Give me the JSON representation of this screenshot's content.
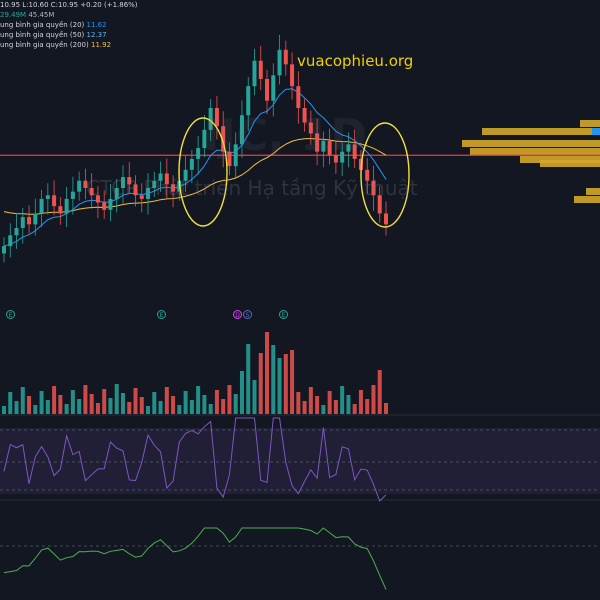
{
  "legend": {
    "ohlc_text": "10.95 L:10.60 C:10.95 +0.20 (+1.86%)",
    "volume_text": "29.49M",
    "volume_extra": "45.45M",
    "ma_rows": [
      {
        "label": "ung bình gia quyền (20)",
        "value": "11.62",
        "color": "#2196f3"
      },
      {
        "label": "ung bình gia quyền (50)",
        "value": "12.37",
        "color": "#5bb8e8"
      },
      {
        "label": "ung bình gia quyền (200)",
        "value": "11.92",
        "color": "#f0c040"
      }
    ]
  },
  "watermark": {
    "site": "vuacophieu.org",
    "company": "CTCP Phát triển Hạ tầng Kỹ thuật",
    "ticker": "IJC, 1D"
  },
  "events": [
    {
      "label": "E",
      "color": "#26a69a"
    },
    {
      "label": "E",
      "color": "#26a69a"
    },
    {
      "label": "D",
      "color": "#e040fb"
    },
    {
      "label": "S",
      "color": "#5c6bc0"
    },
    {
      "label": "E",
      "color": "#26a69a"
    }
  ],
  "colors": {
    "background": "#131722",
    "up": "#26a69a",
    "down": "#ef5350",
    "ema20": "#2196f3",
    "ema200": "#f0c040",
    "support_line": "#f23645",
    "volume_profile": "#d4a92a",
    "rsi": "#7e57c2",
    "indicator2": "#4caf50",
    "annotation": "#f0e040"
  },
  "chart_data": {
    "type": "candlestick",
    "price_panel": {
      "horizontal_line": 13.1,
      "close_series": [
        10.6,
        10.9,
        11.1,
        11.4,
        11.2,
        11.5,
        11.9,
        12.0,
        11.7,
        11.5,
        11.9,
        12.1,
        12.4,
        12.2,
        12.0,
        11.8,
        11.6,
        11.9,
        12.2,
        12.5,
        12.3,
        12.0,
        11.9,
        12.2,
        12.4,
        12.6,
        12.3,
        12.1,
        12.4,
        12.7,
        13.0,
        13.3,
        13.8,
        14.4,
        13.9,
        13.2,
        12.8,
        13.4,
        14.2,
        15.0,
        15.7,
        15.2,
        14.6,
        15.3,
        16.0,
        15.6,
        15.0,
        14.4,
        14.0,
        13.7,
        13.2,
        13.5,
        13.1,
        12.9,
        13.2,
        13.4,
        13.0,
        12.7,
        12.4,
        12.0,
        11.5,
        11.2
      ],
      "ema20_note": "blue moving average",
      "ema200_note": "yellow moving average"
    },
    "volume_panel": {
      "note": "volume histogram, green/red by candle direction"
    },
    "rsi_panel": {
      "levels": [
        70,
        50,
        30
      ]
    },
    "indicator_panel": {
      "note": "green oscillator line"
    }
  }
}
